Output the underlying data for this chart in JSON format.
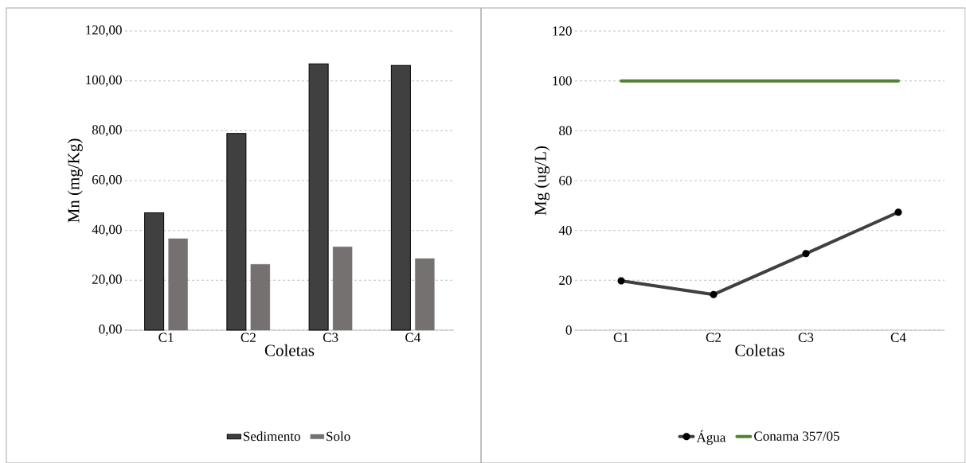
{
  "chart_data": [
    {
      "type": "bar",
      "xlabel": "Coletas",
      "ylabel": "Mn (mg/Kg)",
      "categories": [
        "C1",
        "C2",
        "C3",
        "C4"
      ],
      "series": [
        {
          "name": "Sedimento",
          "color": "#404040",
          "values": [
            47.1,
            78.9,
            106.8,
            106.2
          ]
        },
        {
          "name": "Solo",
          "color": "#767171",
          "values": [
            36.7,
            26.4,
            33.4,
            28.7
          ]
        }
      ],
      "ylim": [
        0,
        120
      ],
      "yticks": [
        {
          "value": 0,
          "label": "0,00"
        },
        {
          "value": 20,
          "label": "20,00"
        },
        {
          "value": 40,
          "label": "40,00"
        },
        {
          "value": 60,
          "label": "60,00"
        },
        {
          "value": 80,
          "label": "80,00"
        },
        {
          "value": 100,
          "label": "100,00"
        },
        {
          "value": 120,
          "label": "120,00"
        }
      ],
      "grid": "y",
      "legend": "bottom"
    },
    {
      "type": "line",
      "xlabel": "Coletas",
      "ylabel": "Mg (ug/L)",
      "categories": [
        "C1",
        "C2",
        "C3",
        "C4"
      ],
      "series": [
        {
          "name": "Água",
          "color": "#404040",
          "marker": "circle",
          "values": [
            19.8,
            14.3,
            30.7,
            47.3
          ]
        },
        {
          "name": "Conama 357/05",
          "color": "#548235",
          "marker": "none",
          "values": [
            100,
            100,
            100,
            100
          ]
        }
      ],
      "ylim": [
        0,
        120
      ],
      "yticks": [
        0,
        20,
        40,
        60,
        80,
        100,
        120
      ],
      "grid": "y",
      "legend": "bottom"
    }
  ]
}
